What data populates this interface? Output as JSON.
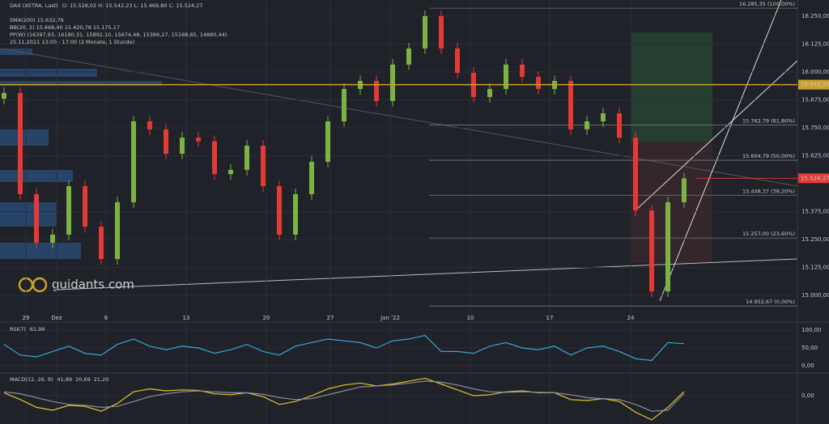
{
  "watermark": "guidants.com",
  "chart_data": [
    {
      "type": "candlestick",
      "title": "DAX (XETRA, Last)",
      "legend": [
        "O: 15.528,02 H: 15.542,23 L: 15.469,80 C: 15.524,27",
        "SMA(200) 15.632,76",
        "BB(20, 2) 15.666,40 15.420,78 15.175,17",
        "PP(W) (16397,93, 16180,31, 15892,10, 15674,48, 15386,27, 15168,65, 14880,44)",
        "25.11.2021 13:00 - 17:00 (2 Monate, 1 Stunde)"
      ],
      "open": [
        15880,
        15906,
        15453,
        15236,
        15272,
        15489,
        15308,
        15163,
        15417,
        15779,
        15743,
        15634,
        15706,
        15690,
        15543,
        15562,
        15670,
        15489,
        15272,
        15453,
        15598,
        15779,
        15924,
        15960,
        15870,
        16033,
        16105,
        16250,
        16105,
        15996,
        15888,
        15924,
        16033,
        15978,
        15924,
        15960,
        15743,
        15779,
        15815,
        15706,
        15380,
        15018,
        15417
      ],
      "high": [
        15931,
        15931,
        15478,
        15297,
        15514,
        15514,
        15333,
        15442,
        15804,
        15804,
        15768,
        15731,
        15731,
        15715,
        15587,
        15695,
        15695,
        15514,
        15478,
        15623,
        15804,
        15949,
        15985,
        15985,
        16058,
        16130,
        16275,
        16275,
        16130,
        16021,
        15949,
        16058,
        16058,
        16003,
        15985,
        15985,
        15804,
        15840,
        15840,
        15731,
        15405,
        15442,
        15549
      ],
      "low": [
        15855,
        15428,
        15211,
        15211,
        15247,
        15283,
        15138,
        15138,
        15392,
        15718,
        15609,
        15609,
        15665,
        15518,
        15518,
        15537,
        15464,
        15247,
        15247,
        15428,
        15573,
        15754,
        15899,
        15845,
        15845,
        16008,
        16080,
        16080,
        15971,
        15863,
        15863,
        15899,
        15953,
        15899,
        15899,
        15718,
        15718,
        15754,
        15681,
        15355,
        14993,
        14993,
        15392
      ],
      "close": [
        15906,
        15453,
        15236,
        15272,
        15489,
        15308,
        15163,
        15417,
        15779,
        15743,
        15634,
        15706,
        15690,
        15543,
        15562,
        15670,
        15489,
        15272,
        15453,
        15598,
        15779,
        15924,
        15960,
        15870,
        16033,
        16105,
        16250,
        16105,
        15996,
        15888,
        15924,
        16033,
        15978,
        15924,
        15960,
        15743,
        15779,
        15815,
        15706,
        15380,
        15018,
        15417,
        15524
      ],
      "up_color": "#7cb342",
      "down_color": "#e53935",
      "xlim": [
        -0.25,
        49
      ],
      "ylim": [
        14928,
        16322
      ],
      "yticks": [
        {
          "value": 16250,
          "label": "16.250,00"
        },
        {
          "value": 16125,
          "label": "16.125,00"
        },
        {
          "value": 16000,
          "label": "16.000,00"
        },
        {
          "value": 15875,
          "label": "15.875,00"
        },
        {
          "value": 15750,
          "label": "15.750,00"
        },
        {
          "value": 15625,
          "label": "15.625,00"
        },
        {
          "value": 15375,
          "label": "15.375,00"
        },
        {
          "value": 15250,
          "label": "15.250,00"
        },
        {
          "value": 15125,
          "label": "15.125,00"
        },
        {
          "value": 15000,
          "label": "15.000,00"
        }
      ],
      "xticks": [
        {
          "value": 1.35,
          "label": "29"
        },
        {
          "value": 3.25,
          "label": "Dez"
        },
        {
          "value": 6.3,
          "label": "6"
        },
        {
          "value": 11.25,
          "label": "13"
        },
        {
          "value": 16.2,
          "label": "20"
        },
        {
          "value": 20.15,
          "label": "27"
        },
        {
          "value": 23.85,
          "label": "Jan '22"
        },
        {
          "value": 28.8,
          "label": "10"
        },
        {
          "value": 33.7,
          "label": "17"
        },
        {
          "value": 38.7,
          "label": "24"
        }
      ],
      "fibonacci": [
        {
          "value": 16285.35,
          "label": "16.285,35 (100,00%)"
        },
        {
          "value": 15762.79,
          "label": "15.762,79 (61,80%)"
        },
        {
          "value": 15604.79,
          "label": "15.604,79 (50,00%)"
        },
        {
          "value": 15448.37,
          "label": "15.448,37 (38,20%)"
        },
        {
          "value": 15257.0,
          "label": "15.257,00 (23,60%)"
        },
        {
          "value": 14952.67,
          "label": "14.952,67 (0,00%)"
        }
      ],
      "price_lines": [
        {
          "value": 15943.3,
          "label": "15.943,30",
          "color": "#c9a227"
        },
        {
          "value": 15524.27,
          "label": "15.524,27",
          "color": "#e53935"
        }
      ]
    },
    {
      "type": "line",
      "title": "RSI(7)",
      "legend": [
        "61,99"
      ],
      "xlim": [
        -0.25,
        49
      ],
      "ylim": [
        -18,
        118
      ],
      "yticks": [
        {
          "value": 100,
          "label": "100,00"
        },
        {
          "value": 50,
          "label": "50,00"
        },
        {
          "value": 0,
          "label": "0,00"
        }
      ],
      "series": [
        {
          "color": "#3ba3d6",
          "values": [
            60,
            30,
            25,
            40,
            55,
            35,
            30,
            60,
            75,
            55,
            45,
            55,
            50,
            35,
            45,
            60,
            40,
            30,
            55,
            65,
            75,
            70,
            65,
            50,
            70,
            75,
            85,
            40,
            40,
            35,
            55,
            65,
            50,
            45,
            55,
            30,
            50,
            55,
            40,
            20,
            15,
            65,
            62
          ]
        }
      ]
    },
    {
      "type": "line",
      "title": "MACD(12, 26, 9)",
      "legend": [
        "41,89",
        "20,69",
        "21,20"
      ],
      "xlim": [
        -0.25,
        49
      ],
      "ylim": [
        -292,
        217
      ],
      "yticks": [
        {
          "value": 0,
          "label": "0,00"
        }
      ],
      "series": [
        {
          "color": "#e6c229",
          "values": [
            30,
            -40,
            -120,
            -150,
            -100,
            -110,
            -160,
            -80,
            40,
            70,
            50,
            60,
            55,
            20,
            10,
            30,
            -10,
            -90,
            -60,
            0,
            70,
            110,
            130,
            100,
            120,
            150,
            180,
            120,
            60,
            0,
            10,
            40,
            50,
            30,
            30,
            -40,
            -50,
            -30,
            -60,
            -170,
            -250,
            -120,
            42
          ]
        },
        {
          "color": "#8a8fa0",
          "values": [
            40,
            20,
            -20,
            -60,
            -90,
            -100,
            -120,
            -110,
            -60,
            -10,
            20,
            40,
            50,
            40,
            30,
            30,
            15,
            -20,
            -40,
            -30,
            10,
            50,
            90,
            100,
            110,
            130,
            150,
            140,
            110,
            70,
            40,
            35,
            40,
            35,
            30,
            10,
            -20,
            -30,
            -40,
            -90,
            -160,
            -150,
            21
          ]
        }
      ]
    }
  ]
}
